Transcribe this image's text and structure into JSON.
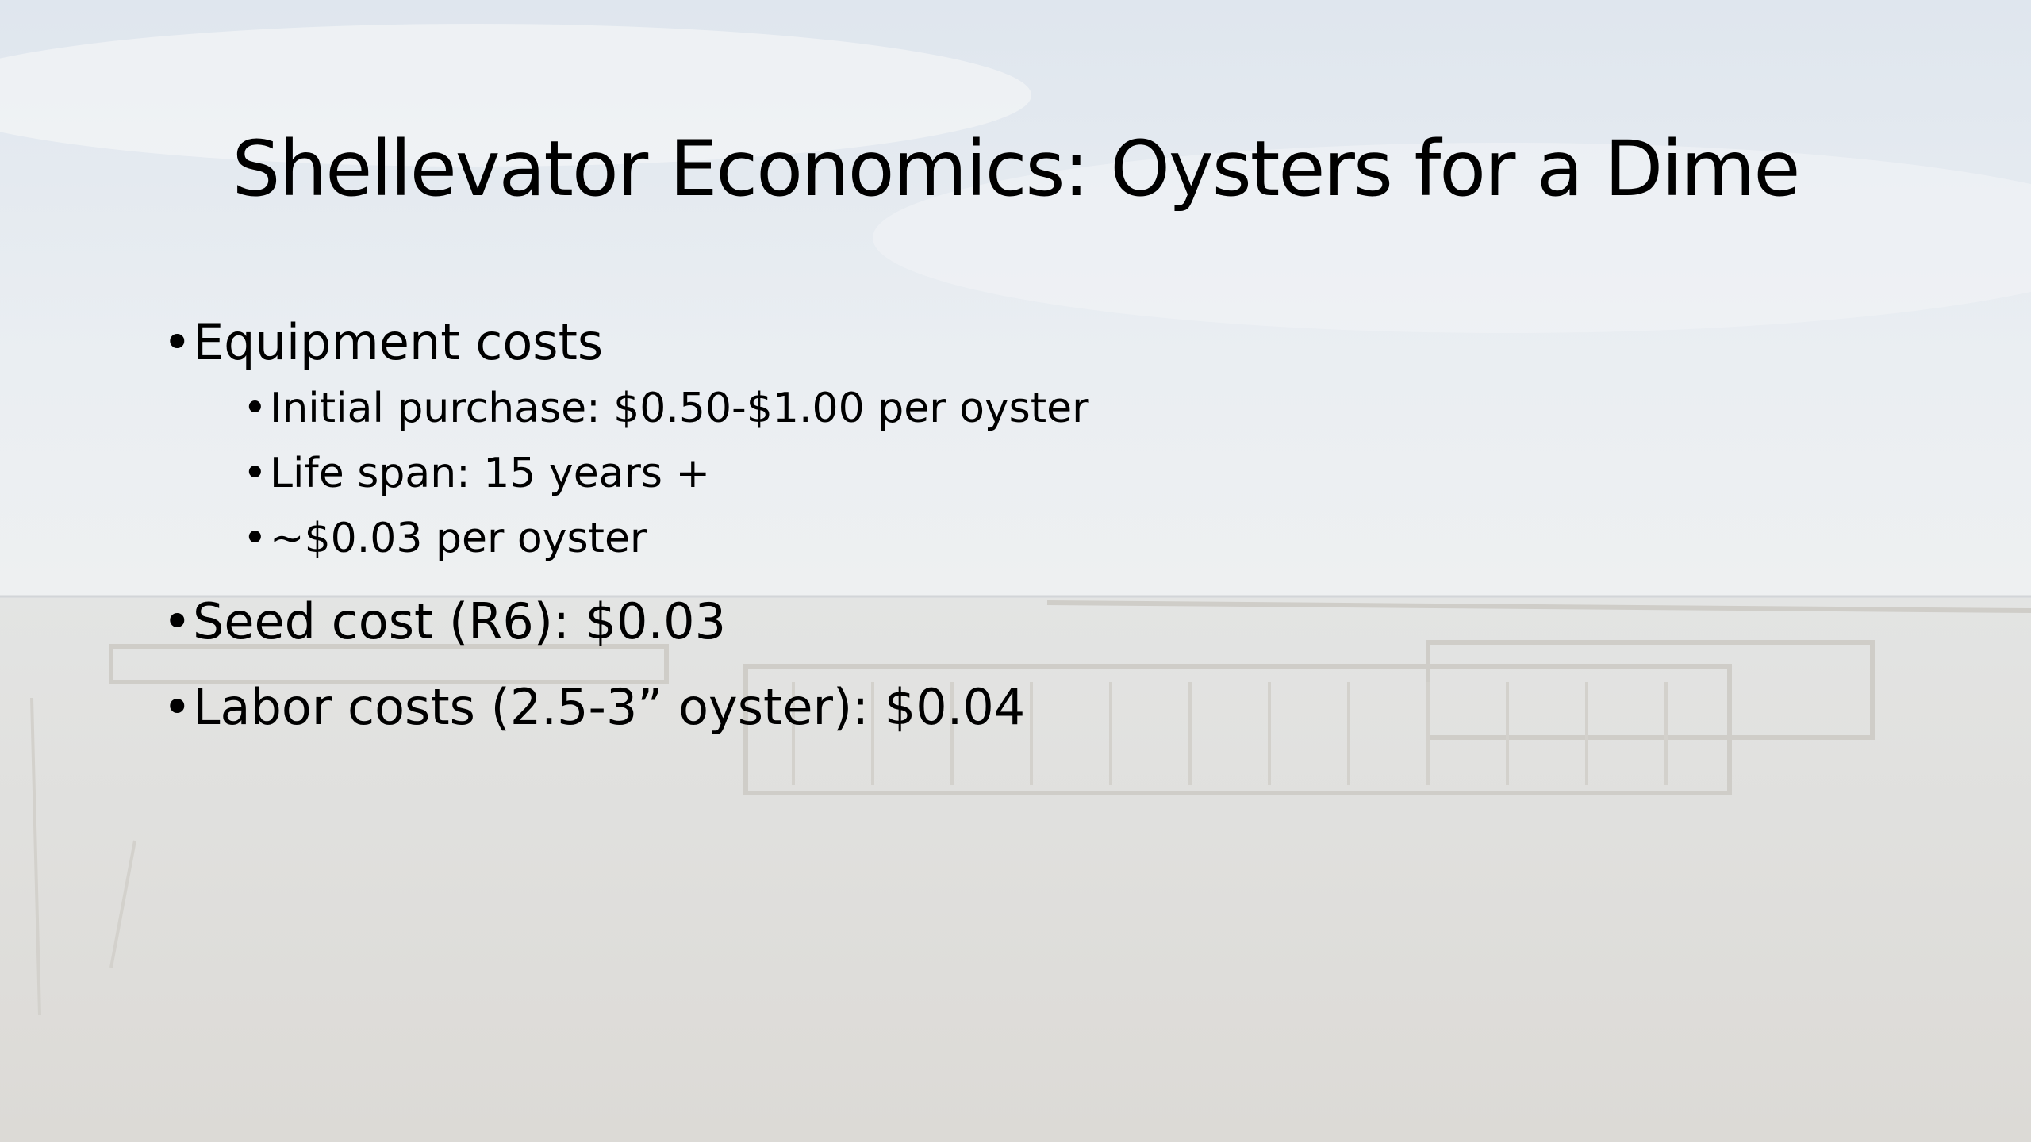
{
  "header": {
    "title": "Shellevator Economics: Oysters for a Dime"
  },
  "bullets": [
    {
      "text": "Equipment costs",
      "children": [
        "Initial purchase: $0.50-$1.00 per oyster",
        "Life span: 15 years +",
        "~$0.03 per oyster"
      ]
    },
    {
      "text": "Seed cost (R6): $0.03",
      "children": []
    },
    {
      "text": "Labor costs (2.5-3” oyster): $0.04",
      "children": []
    }
  ]
}
